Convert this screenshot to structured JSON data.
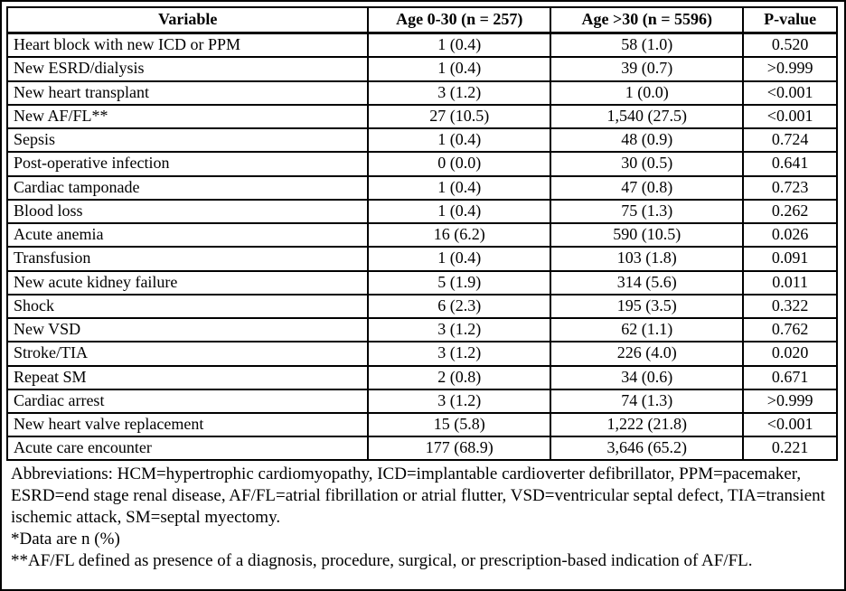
{
  "table": {
    "columns": [
      "Variable",
      "Age 0-30 (n = 257)",
      "Age >30 (n = 5596)",
      "P-value"
    ],
    "rows": [
      [
        "Heart block with new ICD or PPM",
        "1 (0.4)",
        "58 (1.0)",
        "0.520"
      ],
      [
        "New ESRD/dialysis",
        "1 (0.4)",
        "39 (0.7)",
        ">0.999"
      ],
      [
        "New heart transplant",
        "3 (1.2)",
        "1 (0.0)",
        "<0.001"
      ],
      [
        "New AF/FL**",
        "27 (10.5)",
        "1,540 (27.5)",
        "<0.001"
      ],
      [
        "Sepsis",
        "1 (0.4)",
        "48 (0.9)",
        "0.724"
      ],
      [
        "Post-operative infection",
        "0 (0.0)",
        "30 (0.5)",
        "0.641"
      ],
      [
        "Cardiac tamponade",
        "1 (0.4)",
        "47 (0.8)",
        "0.723"
      ],
      [
        "Blood loss",
        "1 (0.4)",
        "75 (1.3)",
        "0.262"
      ],
      [
        "Acute anemia",
        "16 (6.2)",
        "590 (10.5)",
        "0.026"
      ],
      [
        "Transfusion",
        "1 (0.4)",
        "103 (1.8)",
        "0.091"
      ],
      [
        "New acute kidney failure",
        "5 (1.9)",
        "314 (5.6)",
        "0.011"
      ],
      [
        "Shock",
        "6 (2.3)",
        "195 (3.5)",
        "0.322"
      ],
      [
        "New VSD",
        "3 (1.2)",
        "62 (1.1)",
        "0.762"
      ],
      [
        "Stroke/TIA",
        "3 (1.2)",
        "226 (4.0)",
        "0.020"
      ],
      [
        "Repeat SM",
        "2 (0.8)",
        "34 (0.6)",
        "0.671"
      ],
      [
        "Cardiac arrest",
        "3 (1.2)",
        "74 (1.3)",
        ">0.999"
      ],
      [
        "New heart valve replacement",
        "15 (5.8)",
        "1,222 (21.8)",
        "<0.001"
      ],
      [
        "Acute care encounter",
        "177 (68.9)",
        "3,646 (65.2)",
        "0.221"
      ]
    ]
  },
  "footnotes": [
    "Abbreviations: HCM=hypertrophic cardiomyopathy, ICD=implantable cardioverter defibrillator, PPM=pacemaker, ESRD=end stage renal disease, AF/FL=atrial fibrillation or atrial flutter, VSD=ventricular septal defect, TIA=transient ischemic attack, SM=septal myectomy.",
    "*Data are n (%)",
    "**AF/FL defined as presence of a diagnosis, procedure, surgical, or prescription-based indication of AF/FL."
  ]
}
